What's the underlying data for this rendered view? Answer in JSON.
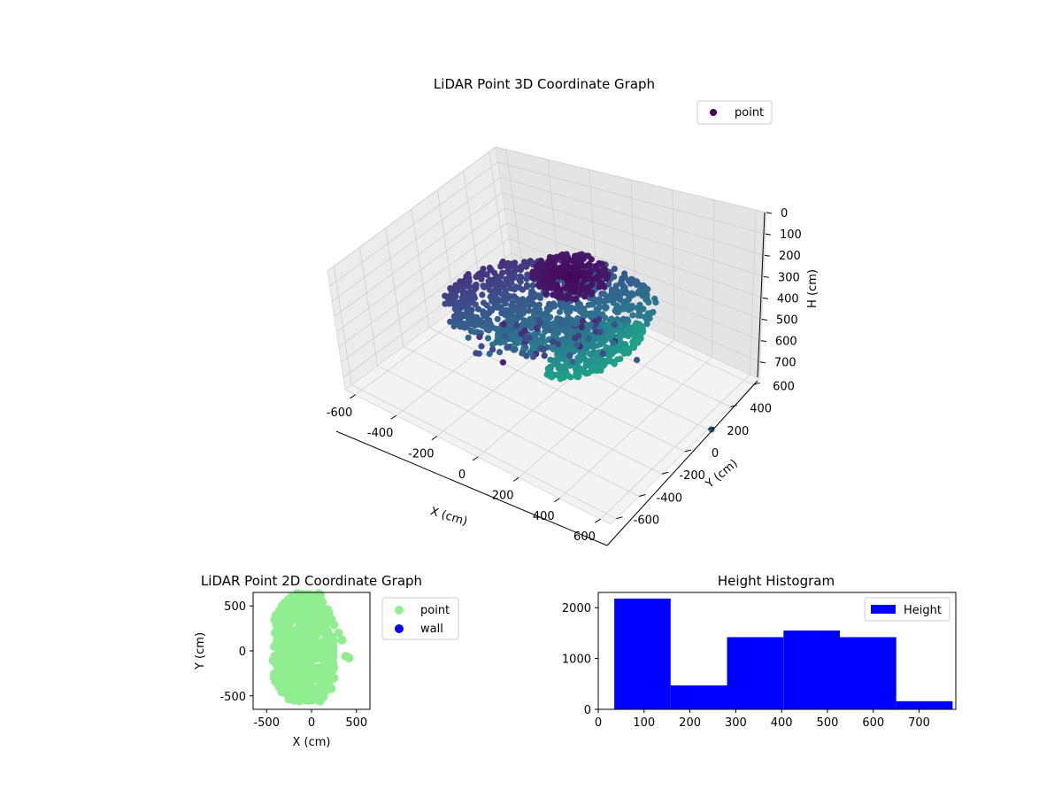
{
  "figure": {
    "background": "#ffffff"
  },
  "chart_data": [
    {
      "type": "scatter",
      "projection": "3d",
      "title": "LiDAR Point 3D Coordinate Graph",
      "xlabel": "X (cm)",
      "ylabel": "Y (cm)",
      "zlabel": "H (cm)",
      "xlim": [
        -650,
        650
      ],
      "ylim": [
        -650,
        650
      ],
      "zlim": [
        780,
        0
      ],
      "zaxis_inverted": true,
      "xticks": [
        -600,
        -400,
        -200,
        0,
        200,
        400,
        600
      ],
      "yticks": [
        -600,
        -400,
        -200,
        0,
        200,
        400,
        600
      ],
      "zticks": [
        0,
        100,
        200,
        300,
        400,
        500,
        600,
        700
      ],
      "grid": true,
      "colormap": "viridis",
      "legend": {
        "placement": "top-right",
        "entries": [
          {
            "label": "point",
            "color": "#440154"
          }
        ]
      },
      "series": [
        {
          "name": "point",
          "note_color_by": "height",
          "description": "dome-shaped point cloud of roughly 7000 points"
        }
      ]
    },
    {
      "type": "scatter",
      "title": "LiDAR Point 2D Coordinate Graph",
      "xlabel": "X (cm)",
      "ylabel": "Y (cm)",
      "xlim": [
        -650,
        650
      ],
      "ylim": [
        -650,
        650
      ],
      "xticks": [
        -500,
        0,
        500
      ],
      "yticks": [
        -500,
        0,
        500
      ],
      "legend": {
        "placement": "outside-right",
        "entries": [
          {
            "label": "point",
            "color": "#90ee90"
          },
          {
            "label": "wall",
            "color": "#0000ff"
          }
        ]
      },
      "series": [
        {
          "name": "point",
          "color": "#90ee90"
        },
        {
          "name": "wall",
          "color": "#0000ff"
        }
      ]
    },
    {
      "type": "bar",
      "subtype": "histogram",
      "title": "Height Histogram",
      "xlim": [
        0,
        780
      ],
      "ylim": [
        0,
        2300
      ],
      "xticks": [
        0,
        100,
        200,
        300,
        400,
        500,
        600,
        700
      ],
      "yticks": [
        0,
        1000,
        2000
      ],
      "bin_edges": [
        35,
        158,
        281,
        404,
        527,
        650,
        773
      ],
      "values": [
        2180,
        470,
        1420,
        1550,
        1420,
        160
      ],
      "color": "#0000ff",
      "legend": {
        "placement": "top-right",
        "entries": [
          {
            "label": "Height",
            "color": "#0000ff"
          }
        ]
      }
    }
  ]
}
